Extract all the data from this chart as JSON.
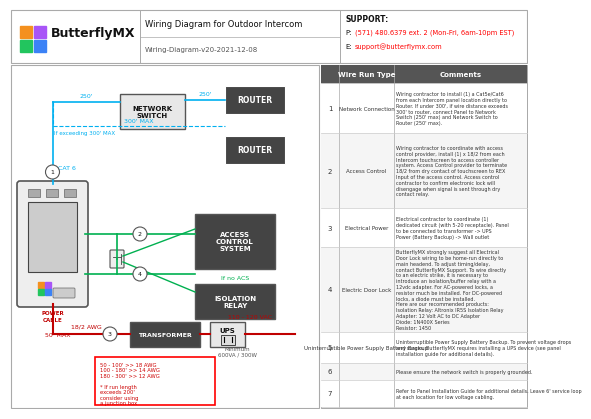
{
  "title": "Wiring Diagram for Outdoor Intercom",
  "subtitle": "Wiring-Diagram-v20-2021-12-08",
  "support_title": "SUPPORT:",
  "support_phone_prefix": "P:",
  "support_phone": "(571) 480.6379 ext. 2 (Mon-Fri, 6am-10pm EST)",
  "support_email_prefix": "E:",
  "support_email": "support@butterflymx.com",
  "bg_color": "#ffffff",
  "cyan_color": "#00b0f0",
  "green_color": "#00b050",
  "red_wire_color": "#c00000",
  "logo_colors": [
    "#f4901e",
    "#a855f7",
    "#22c55e",
    "#3b82f6"
  ],
  "wire_run_rows": [
    {
      "num": "1",
      "type": "Network Connection",
      "comment": "Wiring contractor to install (1) a Cat5e/Cat6\nfrom each Intercom panel location directly to\nRouter. If under 300', if wire distance exceeds\n300' to router, connect Panel to Network\nSwitch (250' max) and Network Switch to\nRouter (250' max)."
    },
    {
      "num": "2",
      "type": "Access Control",
      "comment": "Wiring contractor to coordinate with access\ncontrol provider, install (1) x 18/2 from each\nIntercom touchscreen to access controller\nsystem. Access Control provider to terminate\n18/2 from dry contact of touchscreen to REX\nInput of the access control. Access control\ncontractor to confirm electronic lock will\ndisengage when signal is sent through dry\ncontact relay."
    },
    {
      "num": "3",
      "type": "Electrical Power",
      "comment": "Electrical contractor to coordinate (1)\ndedicated circuit (with 5-20 receptacle). Panel\nto be connected to transformer -> UPS\nPower (Battery Backup) -> Wall outlet"
    },
    {
      "num": "4",
      "type": "Electric Door Lock",
      "comment": "ButterflyMX strongly suggest all Electrical\nDoor Lock wiring to be home-run directly to\nmain headend. To adjust timing/delay,\ncontact ButterflyMX Support. To wire directly\nto an electric strike, it is necessary to\nintroduce an isolation/buffer relay with a\n12vdc adapter. For AC-powered locks, a\nresistor much be installed. For DC-powered\nlocks, a diode must be installed.\nHere are our recommended products:\nIsolation Relay: Altronix IR5S Isolation Relay\nAdapter: 12 Volt AC to DC Adapter\nDiode: 1N400X Series\nResistor: 1450"
    },
    {
      "num": "5",
      "type": "Uninterruptible Power Supply Battery Backup",
      "comment": "Uninterruptible Power Supply Battery Backup. To prevent voltage drops\nand surges, ButterflyMX requires installing a UPS device (see panel\ninstallation guide for additional details)."
    },
    {
      "num": "6",
      "type": "",
      "comment": "Please ensure the network switch is properly grounded."
    },
    {
      "num": "7",
      "type": "",
      "comment": "Refer to Panel Installation Guide for additional details. Leave 6' service loop\nat each location for low voltage cabling."
    }
  ]
}
